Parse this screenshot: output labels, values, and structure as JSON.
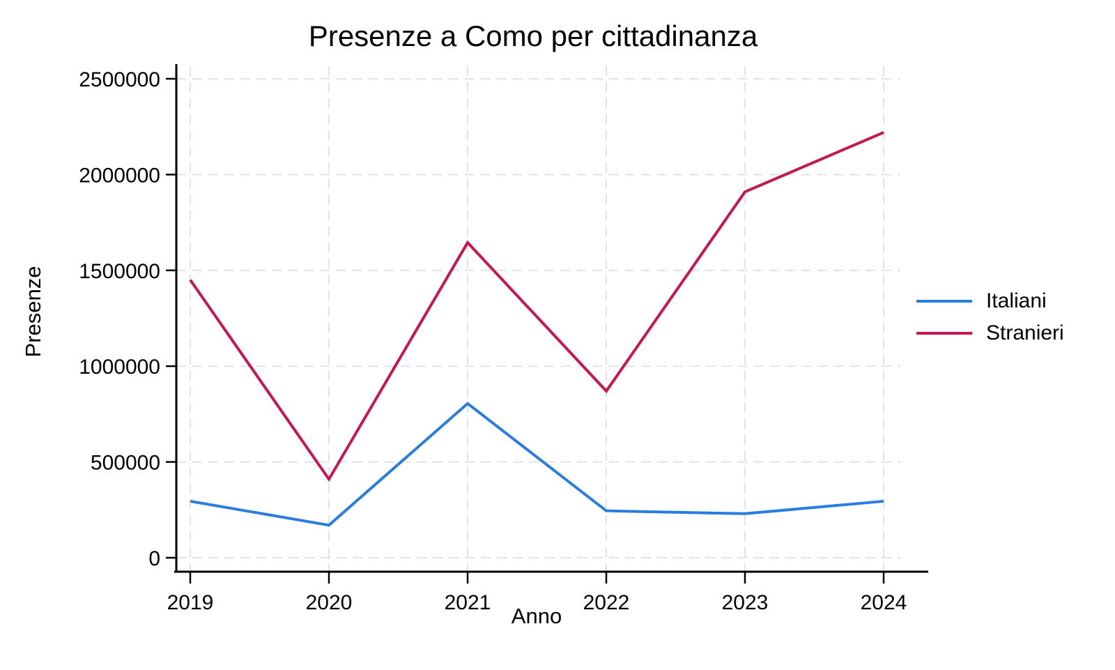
{
  "chart_data": {
    "type": "line",
    "title": "Presenze a Como per cittadinanza",
    "xlabel": "Anno",
    "ylabel": "Presenze",
    "x": [
      2019,
      2020,
      2021,
      2022,
      2023,
      2024
    ],
    "series": [
      {
        "name": "Italiani",
        "color": "#287DE1",
        "values": [
          295000,
          170000,
          805000,
          245000,
          230000,
          295000
        ]
      },
      {
        "name": "Stranieri",
        "color": "#C8164E",
        "values": [
          1450000,
          410000,
          1645000,
          870000,
          1910000,
          2220000
        ]
      }
    ],
    "ylim": [
      0,
      2500000
    ],
    "yticks": [
      0,
      500000,
      1000000,
      1500000,
      2000000,
      2500000
    ],
    "grid": "dashed",
    "legend_position": "right"
  }
}
